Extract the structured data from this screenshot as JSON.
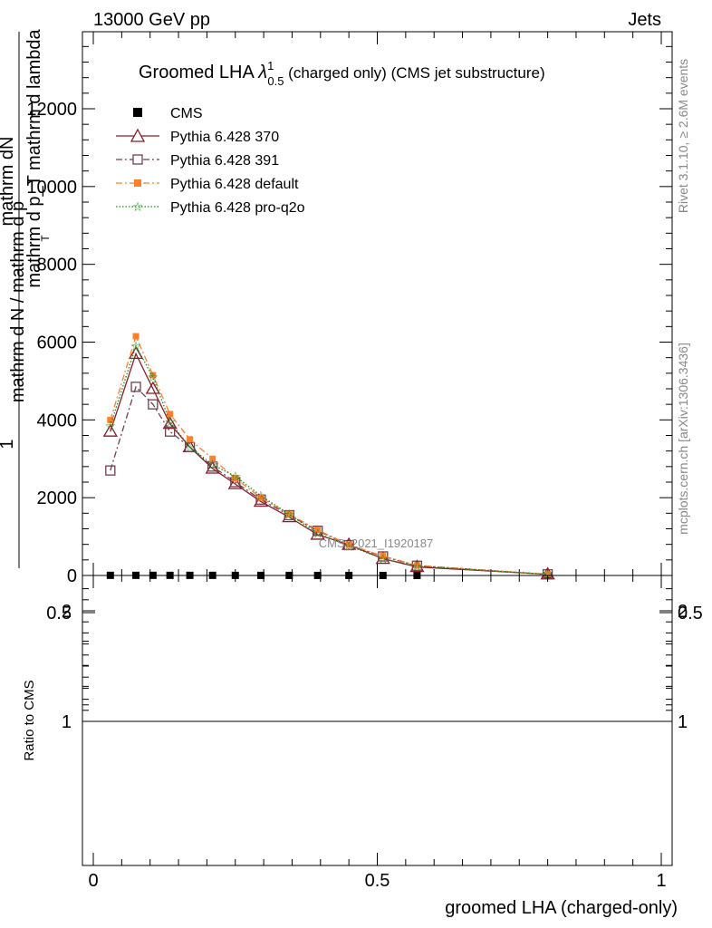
{
  "header": {
    "left": "13000 GeV pp",
    "right": "Jets"
  },
  "title": {
    "main": "Groomed LHA ",
    "lambda": "λ",
    "sup": "1",
    "sub": "0.5",
    "rest": "  (charged only) (CMS jet substructure)"
  },
  "ylabel_top": {
    "num": "mathrm d²N",
    "den": "mathrm d p_T mathrm d lambda",
    "den_sub": "T"
  },
  "ylabel": {
    "one": "1",
    "num": "mathrm d N / mathrm d p",
    "den": "mathrm d N / mathrm d p"
  },
  "ylabel_full": {
    "numerator": "mathrm dN",
    "numerator_sup": "2",
    "fraction_top": "mathrm d p_T mathrm d lambda",
    "prefix": "1",
    "fraction_bottom": "mathrm d N / mathrm d p",
    "sub": "T"
  },
  "right_labels": {
    "upper": "Rivet 3.1.10, ≥ 2.6M events",
    "lower": "mcplots.cern.ch [arXiv:1306.3436]"
  },
  "watermark": "CMS_2021_I1920187",
  "xlabel": "groomed LHA (charged-only)",
  "ratio_ylabel": "Ratio to CMS",
  "legend": {
    "cms": "CMS",
    "s370": "Pythia 6.428 370",
    "s391": "Pythia 6.428 391",
    "sdef": "Pythia 6.428 default",
    "sq2o": "Pythia 6.428 pro-q2o"
  },
  "chart_data": [
    {
      "type": "line",
      "panel": "main",
      "ylim": [
        0,
        14000
      ],
      "xlim": [
        -0.02,
        1.02
      ],
      "yticks": [
        0,
        2000,
        4000,
        6000,
        8000,
        10000,
        12000
      ],
      "ytick_labels": [
        "0",
        "2000",
        "4000",
        "6000",
        "8000",
        "10000",
        "12000"
      ],
      "x": [
        0.03,
        0.075,
        0.105,
        0.135,
        0.17,
        0.21,
        0.25,
        0.295,
        0.345,
        0.395,
        0.45,
        0.51,
        0.57,
        0.8
      ],
      "series": [
        {
          "name": "CMS",
          "color": "#000000",
          "marker": "square-filled",
          "dash": "none",
          "values": [
            3.5,
            3.6,
            3.6,
            3.5,
            3.3,
            3.0,
            2.6,
            2.2,
            1.8,
            1.4,
            1.0,
            0.7,
            0.4,
            0.05
          ]
        },
        {
          "name": "Pythia 6.428 370",
          "color": "#8b1a2a",
          "marker": "triangle-open",
          "dash": "solid",
          "values": [
            3700,
            5700,
            4800,
            3900,
            3300,
            2750,
            2350,
            1900,
            1500,
            1050,
            790,
            430,
            220,
            30
          ]
        },
        {
          "name": "Pythia 6.428 391",
          "color": "#704050",
          "marker": "square-open",
          "dash": "dashdot",
          "values": [
            2700,
            4850,
            4400,
            3700,
            3300,
            2800,
            2400,
            1950,
            1550,
            1150,
            780,
            490,
            250,
            30
          ]
        },
        {
          "name": "Pythia 6.428 default",
          "color": "#ff7f2a",
          "marker": "square-filled",
          "dash": "dashdot",
          "values": [
            4000,
            6150,
            5150,
            4150,
            3500,
            3000,
            2500,
            2000,
            1580,
            1170,
            790,
            500,
            260,
            30
          ]
        },
        {
          "name": "Pythia 6.428 pro-q2o",
          "color": "#1a8a1a",
          "marker": "star",
          "dash": "dotted",
          "values": [
            3850,
            5900,
            5100,
            3950,
            3300,
            2850,
            2550,
            2050,
            1570,
            1080,
            760,
            430,
            240,
            30
          ]
        }
      ]
    },
    {
      "type": "area",
      "panel": "ratio",
      "ylabel": "Ratio to CMS",
      "ylim": [
        0.35,
        2.25
      ],
      "xlim": [
        -0.02,
        1.02
      ],
      "yticks": [
        0.5,
        1,
        2
      ],
      "ytick_labels": [
        "0.5",
        "1",
        "2"
      ],
      "xticks": [
        0,
        0.5,
        1
      ],
      "xtick_labels": [
        "0",
        "0.5",
        "1"
      ],
      "bin_edges": [
        0,
        0.06,
        0.09,
        0.12,
        0.15,
        0.19,
        0.23,
        0.27,
        0.32,
        0.37,
        0.42,
        0.48,
        0.54,
        0.6,
        1.0
      ],
      "stat_band": {
        "color": "#90ee90",
        "low": [
          0.965,
          0.955,
          0.975,
          0.985,
          0.98,
          0.97,
          0.96,
          0.965,
          0.975,
          0.955,
          0.96,
          0.955,
          0.955,
          0.955
        ],
        "high": [
          1.03,
          1.04,
          1.025,
          1.015,
          1.02,
          1.03,
          1.045,
          1.04,
          1.025,
          1.045,
          1.04,
          1.055,
          1.05,
          1.055
        ]
      },
      "syst_band": {
        "color": "#ffff99",
        "low": [
          0.94,
          0.915,
          0.965,
          0.97,
          0.965,
          0.945,
          0.915,
          0.935,
          0.955,
          0.915,
          0.93,
          0.895,
          0.915,
          0.9
        ],
        "high": [
          1.055,
          1.085,
          1.035,
          1.03,
          1.04,
          1.05,
          1.085,
          1.07,
          1.045,
          1.08,
          1.06,
          1.1,
          1.08,
          1.095
        ]
      },
      "reference": 1
    }
  ]
}
